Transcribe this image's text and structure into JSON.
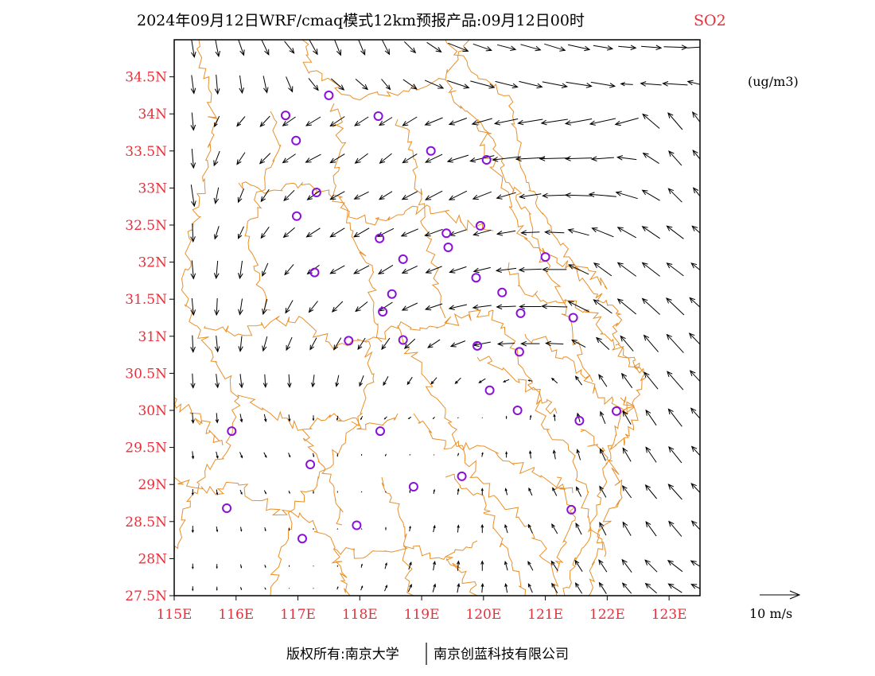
{
  "header": {
    "title": "2024年09月12日WRF/cmaq模式12km预报产品:09月12日00时",
    "species": "SO2"
  },
  "map": {
    "units": "(ug/m3)",
    "lon_range": [
      115,
      123.5
    ],
    "lat_range": [
      27.5,
      35.0
    ],
    "lon_ticks": [
      {
        "value": 115,
        "label": "115E"
      },
      {
        "value": 116,
        "label": "116E"
      },
      {
        "value": 117,
        "label": "117E"
      },
      {
        "value": 118,
        "label": "118E"
      },
      {
        "value": 119,
        "label": "119E"
      },
      {
        "value": 120,
        "label": "120E"
      },
      {
        "value": 121,
        "label": "121E"
      },
      {
        "value": 122,
        "label": "122E"
      },
      {
        "value": 123,
        "label": "123E"
      }
    ],
    "lat_ticks": [
      {
        "value": 27.5,
        "label": "27.5N"
      },
      {
        "value": 28,
        "label": "28N"
      },
      {
        "value": 28.5,
        "label": "28.5N"
      },
      {
        "value": 29,
        "label": "29N"
      },
      {
        "value": 29.5,
        "label": "29.5N"
      },
      {
        "value": 30,
        "label": "30N"
      },
      {
        "value": 30.5,
        "label": "30.5N"
      },
      {
        "value": 31,
        "label": "31N"
      },
      {
        "value": 31.5,
        "label": "31.5N"
      },
      {
        "value": 32,
        "label": "32N"
      },
      {
        "value": 32.5,
        "label": "32.5N"
      },
      {
        "value": 33,
        "label": "33N"
      },
      {
        "value": 33.5,
        "label": "33.5N"
      },
      {
        "value": 34,
        "label": "34N"
      },
      {
        "value": 34.5,
        "label": "34.5N"
      }
    ],
    "colors": {
      "frame": "#000000",
      "boundary": "#e8902a",
      "station": "#8a10d8",
      "arrow": "#000000",
      "tick_label": "#e8303a"
    },
    "stations": [
      [
        117.5,
        34.25
      ],
      [
        116.8,
        33.98
      ],
      [
        118.3,
        33.97
      ],
      [
        116.97,
        33.64
      ],
      [
        119.15,
        33.5
      ],
      [
        120.05,
        33.38
      ],
      [
        117.3,
        32.94
      ],
      [
        116.98,
        32.62
      ],
      [
        119.95,
        32.49
      ],
      [
        119.4,
        32.39
      ],
      [
        119.43,
        32.2
      ],
      [
        118.32,
        32.32
      ],
      [
        118.7,
        32.04
      ],
      [
        121.0,
        32.07
      ],
      [
        117.27,
        31.86
      ],
      [
        119.88,
        31.79
      ],
      [
        120.3,
        31.59
      ],
      [
        118.52,
        31.57
      ],
      [
        118.37,
        31.33
      ],
      [
        120.6,
        31.31
      ],
      [
        121.45,
        31.25
      ],
      [
        117.82,
        30.94
      ],
      [
        118.7,
        30.95
      ],
      [
        119.9,
        30.87
      ],
      [
        120.58,
        30.79
      ],
      [
        120.1,
        30.27
      ],
      [
        120.55,
        30.0
      ],
      [
        122.15,
        29.99
      ],
      [
        121.55,
        29.86
      ],
      [
        115.93,
        29.72
      ],
      [
        118.33,
        29.72
      ],
      [
        117.2,
        29.27
      ],
      [
        119.65,
        29.11
      ],
      [
        118.87,
        28.97
      ],
      [
        115.85,
        28.68
      ],
      [
        121.42,
        28.66
      ],
      [
        117.95,
        28.45
      ],
      [
        117.07,
        28.27
      ]
    ],
    "wind": {
      "legend_label": "10 m/s",
      "rows": [
        {
          "lat": 34.9,
          "lon0": 115.3,
          "dlon": 0.39,
          "u": [
            0.8,
            0.9,
            1.4,
            1.8,
            2.4,
            2.0,
            1.6,
            1.6,
            1.8,
            2.8,
            3.6,
            5.0,
            4.6,
            4.6,
            5.0,
            5.2,
            5.4,
            4.8,
            4.4,
            5.0,
            5.8,
            6.2
          ],
          "v": [
            -5.0,
            -4.6,
            -4.0,
            -3.8,
            -3.0,
            -3.6,
            -4.0,
            -3.8,
            -3.6,
            -2.8,
            -2.4,
            -2.0,
            -1.6,
            -1.2,
            -1.4,
            -1.6,
            -1.2,
            -0.8,
            -0.4,
            -0.4,
            -0.2,
            0.4
          ]
        },
        {
          "lat": 34.4,
          "lon0": 115.3,
          "dlon": 0.39,
          "u": [
            0.6,
            0.4,
            0.6,
            0.9,
            1.6,
            2.4,
            3.2,
            3.0,
            2.2,
            3.4,
            4.6,
            5.4,
            6.0,
            5.6,
            5.8,
            6.2,
            6.4,
            6.0,
            -3.0,
            -5.2,
            -6.2,
            -5.8
          ],
          "v": [
            -4.6,
            -4.8,
            -4.4,
            -4.2,
            -3.8,
            -3.0,
            -2.8,
            -2.6,
            -2.6,
            -2.4,
            -2.0,
            -1.8,
            -1.6,
            -1.4,
            -1.4,
            -1.2,
            -1.0,
            -1.0,
            0.2,
            0.4,
            0.4,
            1.4
          ]
        },
        {
          "lat": 33.9,
          "lon0": 115.3,
          "dlon": 0.39,
          "u": [
            0.4,
            -1.2,
            -2.0,
            -2.4,
            -3.2,
            -3.6,
            -3.6,
            -3.4,
            -3.2,
            -3.6,
            -4.4,
            -4.4,
            -5.0,
            -5.8,
            -6.2,
            -6.6,
            -6.6,
            -6.4,
            -5.8,
            -4.2,
            -3.6,
            -3.4
          ],
          "v": [
            -4.4,
            -2.6,
            -2.4,
            -2.6,
            -2.2,
            -2.2,
            -2.4,
            -2.2,
            -2.0,
            -2.2,
            -1.8,
            -1.6,
            -1.4,
            -1.2,
            -1.0,
            -1.0,
            -1.2,
            -1.4,
            -1.6,
            3.6,
            4.2,
            4.6
          ]
        },
        {
          "lat": 33.4,
          "lon0": 115.3,
          "dlon": 0.39,
          "u": [
            0.4,
            -1.4,
            -2.0,
            -2.6,
            -3.2,
            -3.8,
            -3.6,
            -3.2,
            -3.0,
            -3.6,
            -4.2,
            -5.2,
            -6.0,
            -6.8,
            -7.2,
            -7.4,
            -6.6,
            -5.6,
            -4.8,
            -4.0,
            -3.2,
            -3.2
          ],
          "v": [
            -4.8,
            -3.6,
            -3.0,
            -2.6,
            -2.2,
            -2.0,
            -2.2,
            -2.4,
            -2.4,
            -2.2,
            -2.0,
            -1.6,
            -1.4,
            -0.8,
            -0.4,
            -0.2,
            -0.2,
            -0.4,
            0.6,
            2.6,
            3.6,
            4.0
          ]
        },
        {
          "lat": 32.9,
          "lon0": 115.3,
          "dlon": 0.39,
          "u": [
            0.8,
            -0.8,
            -1.4,
            -2.0,
            -2.6,
            -3.0,
            -3.6,
            -3.6,
            -3.2,
            -3.8,
            -4.2,
            -4.4,
            -4.6,
            -4.8,
            -5.4,
            -6.0,
            -6.6,
            -6.8,
            -5.4,
            -4.4,
            -3.4,
            -3.0
          ],
          "v": [
            -5.4,
            -4.0,
            -3.4,
            -3.0,
            -2.6,
            -2.2,
            -2.0,
            -1.8,
            -2.0,
            -2.0,
            -2.2,
            -2.2,
            -1.8,
            -1.4,
            -0.8,
            -0.2,
            0.2,
            0.6,
            1.6,
            2.6,
            3.4,
            3.8
          ]
        },
        {
          "lat": 32.4,
          "lon0": 115.3,
          "dlon": 0.39,
          "u": [
            0.2,
            -1.0,
            -1.4,
            -2.0,
            -2.8,
            -3.4,
            -3.6,
            -3.8,
            -4.0,
            -4.2,
            -4.4,
            -4.2,
            -4.4,
            -4.6,
            -4.6,
            -4.8,
            -5.2,
            -5.4,
            -4.6,
            -4.4,
            -4.2,
            -3.6
          ],
          "v": [
            -4.6,
            -3.2,
            -3.0,
            -2.8,
            -2.4,
            -2.2,
            -2.2,
            -2.2,
            -2.0,
            -1.8,
            -1.6,
            -1.4,
            -1.2,
            -0.8,
            -0.2,
            0.2,
            1.4,
            2.2,
            2.6,
            3.0,
            3.2,
            3.2
          ]
        },
        {
          "lat": 31.9,
          "lon0": 115.3,
          "dlon": 0.39,
          "u": [
            0.4,
            -0.4,
            -0.6,
            -1.4,
            -2.2,
            -3.0,
            -3.6,
            -3.8,
            -3.6,
            -3.8,
            -4.0,
            -4.2,
            -4.2,
            -5.0,
            -5.6,
            -6.0,
            -5.0,
            -4.4,
            -4.6,
            -4.4,
            -4.2,
            -4.0
          ],
          "v": [
            -4.6,
            -4.4,
            -4.4,
            -3.2,
            -2.6,
            -2.2,
            -2.0,
            -2.0,
            -2.2,
            -1.8,
            -1.6,
            -1.4,
            -1.0,
            -0.6,
            -0.2,
            0.0,
            2.4,
            3.2,
            3.4,
            3.4,
            3.2,
            3.2
          ]
        },
        {
          "lat": 31.4,
          "lon0": 115.3,
          "dlon": 0.39,
          "u": [
            0.4,
            -0.2,
            -0.6,
            -1.0,
            -1.8,
            -2.2,
            -2.6,
            -3.0,
            -3.4,
            -3.8,
            -4.2,
            -4.4,
            -4.6,
            -4.8,
            -5.4,
            -6.4,
            -5.2,
            -4.6,
            -4.6,
            -4.4,
            -4.4,
            -4.8
          ],
          "v": [
            -4.2,
            -4.2,
            -4.0,
            -3.8,
            -3.2,
            -2.8,
            -2.6,
            -2.4,
            -2.2,
            -1.8,
            -1.4,
            -1.0,
            -0.6,
            -0.2,
            0.0,
            0.2,
            2.6,
            3.4,
            3.8,
            4.0,
            4.2,
            4.4
          ]
        },
        {
          "lat": 30.9,
          "lon0": 115.3,
          "dlon": 0.39,
          "u": [
            0.2,
            0.4,
            -0.4,
            -1.0,
            -1.4,
            -1.6,
            -1.8,
            -1.8,
            -2.0,
            -2.6,
            -3.0,
            -3.6,
            -4.2,
            -4.2,
            -4.6,
            -4.4,
            -3.4,
            -3.2,
            -3.2,
            -3.6,
            -4.2,
            -5.0
          ],
          "v": [
            -4.2,
            -4.0,
            -3.8,
            -3.6,
            -3.2,
            -3.0,
            -3.0,
            -2.8,
            -2.8,
            -2.4,
            -2.0,
            -1.4,
            -0.8,
            -0.2,
            0.0,
            0.2,
            1.8,
            3.0,
            3.8,
            4.2,
            4.6,
            5.2
          ]
        },
        {
          "lat": 30.4,
          "lon0": 115.3,
          "dlon": 0.39,
          "u": [
            0.2,
            0.4,
            0.4,
            0.2,
            0.2,
            -0.4,
            -0.6,
            -1.0,
            -1.2,
            -1.2,
            -1.4,
            -1.4,
            -1.6,
            -1.4,
            -1.0,
            -1.4,
            -1.6,
            -2.0,
            -2.6,
            -3.4,
            -4.0,
            -4.6
          ],
          "v": [
            -3.6,
            -3.4,
            -3.4,
            -3.2,
            -3.2,
            -3.0,
            -2.8,
            -2.6,
            -2.2,
            -1.8,
            -1.6,
            -1.4,
            -1.0,
            -0.6,
            0.2,
            1.2,
            2.2,
            3.0,
            3.6,
            4.2,
            4.6,
            5.0
          ]
        },
        {
          "lat": 29.9,
          "lon0": 115.3,
          "dlon": 0.39,
          "u": [
            0.2,
            0.2,
            0.4,
            0.4,
            0.2,
            0.0,
            -0.2,
            -0.4,
            -0.6,
            -0.6,
            -0.4,
            -0.2,
            0.0,
            0.0,
            0.2,
            -0.2,
            -0.6,
            -1.2,
            -2.0,
            -2.6,
            -3.4,
            -4.2
          ],
          "v": [
            -2.6,
            -2.4,
            -2.0,
            -1.8,
            -1.6,
            -1.2,
            -1.0,
            -0.8,
            -0.6,
            -0.4,
            -0.4,
            -0.2,
            0.2,
            0.6,
            1.0,
            1.6,
            2.2,
            3.0,
            3.4,
            3.8,
            4.4,
            4.8
          ]
        },
        {
          "lat": 29.4,
          "lon0": 115.3,
          "dlon": 0.39,
          "u": [
            0.2,
            0.4,
            0.6,
            0.6,
            0.4,
            0.2,
            0.0,
            0.0,
            -0.2,
            -0.2,
            0.0,
            0.2,
            0.2,
            0.0,
            -0.2,
            -0.4,
            -0.8,
            -1.4,
            -2.0,
            -2.6,
            -3.2,
            -3.8
          ],
          "v": [
            -1.8,
            -1.6,
            -1.4,
            -1.2,
            -1.0,
            -0.8,
            -0.6,
            -0.4,
            -0.4,
            -0.2,
            0.2,
            0.6,
            1.0,
            1.4,
            1.8,
            2.2,
            2.6,
            3.0,
            3.4,
            3.8,
            4.0,
            4.2
          ]
        },
        {
          "lat": 28.9,
          "lon0": 115.3,
          "dlon": 0.39,
          "u": [
            0.0,
            0.2,
            0.4,
            0.4,
            0.2,
            0.0,
            0.0,
            -0.2,
            -0.2,
            0.0,
            0.2,
            0.2,
            0.0,
            -0.4,
            -0.8,
            -1.0,
            -1.2,
            -1.6,
            -2.2,
            -2.8,
            -3.4,
            -4.0
          ],
          "v": [
            -1.4,
            -1.2,
            -1.0,
            -0.8,
            -0.6,
            -0.6,
            -0.4,
            -0.2,
            0.2,
            0.6,
            1.0,
            1.4,
            1.6,
            1.6,
            1.8,
            2.0,
            2.4,
            2.8,
            3.0,
            3.4,
            3.8,
            4.2
          ]
        },
        {
          "lat": 28.4,
          "lon0": 115.3,
          "dlon": 0.39,
          "u": [
            0.0,
            0.2,
            0.2,
            0.2,
            0.0,
            0.0,
            -0.2,
            -0.2,
            0.0,
            0.2,
            0.4,
            0.2,
            0.0,
            -0.6,
            -1.0,
            -1.4,
            -1.4,
            -1.6,
            -2.0,
            -2.6,
            -3.2,
            -3.8
          ],
          "v": [
            -1.6,
            -1.2,
            -1.0,
            -0.8,
            -0.6,
            -0.4,
            -0.2,
            0.2,
            0.6,
            1.2,
            1.6,
            1.8,
            2.0,
            2.0,
            2.2,
            2.4,
            2.8,
            3.2,
            3.4,
            3.6,
            3.8,
            4.0
          ]
        },
        {
          "lat": 27.9,
          "lon0": 115.3,
          "dlon": 0.39,
          "u": [
            0.0,
            0.0,
            0.2,
            0.2,
            0.0,
            0.0,
            0.0,
            0.2,
            0.4,
            0.6,
            0.4,
            0.2,
            0.0,
            -0.6,
            -1.2,
            -1.6,
            -1.8,
            -2.0,
            -2.4,
            -3.0,
            -3.6,
            -4.2
          ],
          "v": [
            -1.2,
            -1.0,
            -0.8,
            -0.6,
            -0.4,
            -0.2,
            0.4,
            0.8,
            1.4,
            1.8,
            2.2,
            2.4,
            2.4,
            2.2,
            2.2,
            2.4,
            2.8,
            3.0,
            3.2,
            3.0,
            2.8,
            2.6
          ]
        },
        {
          "lat": 27.6,
          "lon0": 115.3,
          "dlon": 0.39,
          "u": [
            0.0,
            0.0,
            0.2,
            0.2,
            0.0,
            0.0,
            0.2,
            0.4,
            0.6,
            0.8,
            0.6,
            0.4,
            0.2,
            -0.4,
            -1.0,
            -1.4,
            -1.6,
            -1.8,
            -2.2,
            -2.8,
            -3.4,
            -4.0
          ],
          "v": [
            -1.0,
            -0.8,
            -0.6,
            -0.4,
            -0.2,
            0.2,
            0.6,
            1.0,
            1.4,
            1.8,
            2.0,
            2.2,
            2.2,
            2.2,
            2.2,
            2.4,
            2.6,
            2.8,
            2.6,
            2.4,
            2.2,
            2.0
          ]
        }
      ]
    }
  },
  "footer": {
    "copyright": "版权所有:南京大学",
    "company": "南京创蓝科技有限公司"
  }
}
